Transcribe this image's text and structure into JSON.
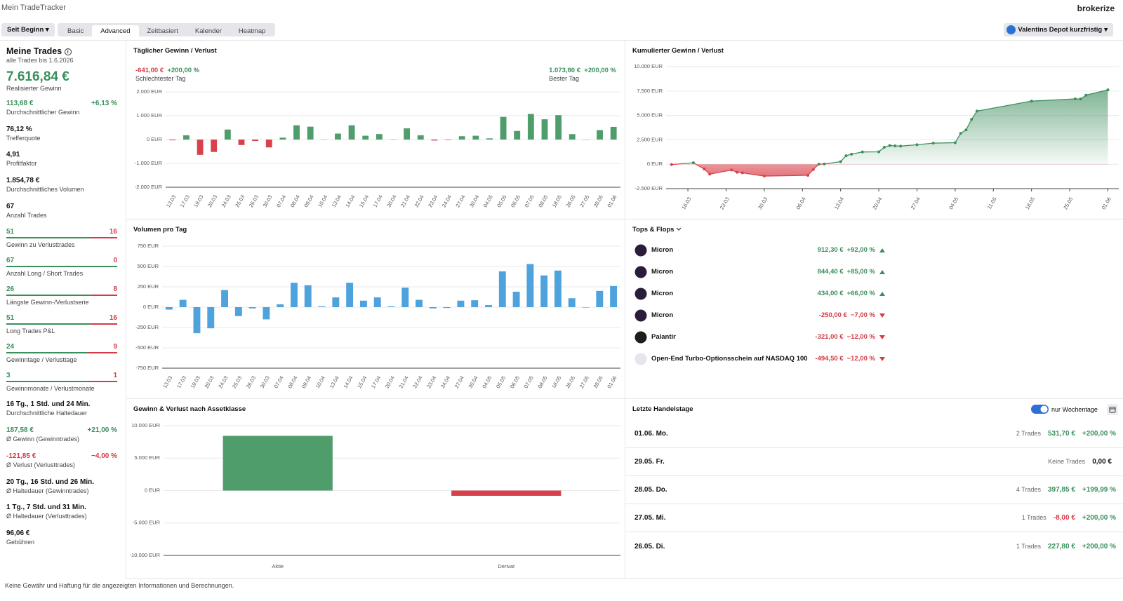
{
  "header": {
    "title": "Mein TradeTracker",
    "logo": "brokerize",
    "range": "Seit Beginn",
    "tabs": [
      "Basic",
      "Advanced",
      "Zeitbasiert",
      "Kalender",
      "Heatmap"
    ],
    "active_tab": 1,
    "depot": "Valentins Depot kurzfristig"
  },
  "sidebar": {
    "title": "Meine Trades",
    "subtitle": "alle Trades bis 1.6.2026",
    "total": "7.616,84 €",
    "total_label": "Realisierter Gewinn",
    "stats": [
      {
        "value": "113,68 €",
        "extra": "+6,13 %",
        "label": "Durchschnittlicher Gewinn",
        "trend": "up"
      },
      {
        "value": "76,12 %",
        "label": "Trefferquote"
      },
      {
        "value": "4,91",
        "label": "Profitfaktor"
      },
      {
        "value": "1.854,78 €",
        "label": "Durchschnittliches Volumen"
      },
      {
        "value": "67",
        "label": "Anzahl Trades"
      },
      {
        "win": 51,
        "loss": 16,
        "label": "Gewinn zu Verlusttrades"
      },
      {
        "win": 67,
        "loss": 0,
        "label": "Anzahl Long / Short Trades"
      },
      {
        "win": 26,
        "loss": 8,
        "label": "Längste Gewinn-/Verlustserie"
      },
      {
        "win": 51,
        "loss": 16,
        "label": "Long Trades P&L"
      },
      {
        "win": 24,
        "loss": 9,
        "label": "Gewinntage / Verlusttage"
      },
      {
        "win": 3,
        "loss": 1,
        "label": "Gewinnmonate / Verlustmonate"
      },
      {
        "value": "16 Tg., 1 Std. und 24 Min.",
        "label": "Durchschnittliche Haltedauer"
      },
      {
        "value": "187,58 €",
        "extra": "+21,00 %",
        "label": "Ø Gewinn (Gewinntrades)",
        "trend": "up"
      },
      {
        "value": "-121,85 €",
        "extra": "−4,00 %",
        "label": "Ø Verlust (Verlusttrades)",
        "trend": "down"
      },
      {
        "value": "20 Tg., 16 Std. und 26 Min.",
        "label": "Ø Haltedauer (Gewinntrades)"
      },
      {
        "value": "1 Tg., 7 Std. und 31 Min.",
        "label": "Ø Haltedauer (Verlusttrades)"
      },
      {
        "value": "96,06 €",
        "label": "Gebühren"
      }
    ]
  },
  "daily": {
    "type": "bar",
    "title": "Täglicher Gewinn / Verlust",
    "worst": {
      "value": "-641,00 €",
      "pct": "+200,00 %",
      "label": "Schlechtester Tag"
    },
    "best": {
      "value": "1.073,80 €",
      "pct": "+200,00 %",
      "label": "Bester Tag"
    },
    "categories": [
      "13.03",
      "17.03",
      "19.03",
      "20.03",
      "24.03",
      "25.03",
      "26.03",
      "30.03",
      "07.04",
      "08.04",
      "09.04",
      "10.04",
      "13.04",
      "14.04",
      "15.04",
      "17.04",
      "20.04",
      "21.04",
      "22.04",
      "23.04",
      "24.04",
      "27.04",
      "30.04",
      "04.05",
      "05.05",
      "06.05",
      "07.05",
      "08.05",
      "18.05",
      "26.05",
      "27.05",
      "28.05",
      "01.06"
    ],
    "values": [
      -30,
      180,
      -641,
      -520,
      420,
      -230,
      -60,
      -330,
      80,
      600,
      540,
      10,
      250,
      600,
      160,
      230,
      10,
      470,
      180,
      -40,
      -20,
      140,
      160,
      50,
      950,
      360,
      1073.8,
      850,
      1024.69,
      227.8,
      -8,
      397.85,
      531.7
    ],
    "ylim": [
      -2000,
      2000
    ],
    "yticks": [
      {
        "value": 2000,
        "label": "2.000 EUR"
      },
      {
        "value": 1000,
        "label": "1.000 EUR"
      },
      {
        "value": 0,
        "label": "0 EUR"
      },
      {
        "value": -1000,
        "label": "-1.000 EUR"
      },
      {
        "value": -2000,
        "label": "-2.000 EUR"
      }
    ],
    "positive_color": "#4f9d6b",
    "negative_color": "#d8414b",
    "grid": true
  },
  "volume": {
    "type": "bar",
    "title": "Volumen pro Tag",
    "categories": [
      "13.03",
      "17.03",
      "19.03",
      "20.03",
      "24.03",
      "25.03",
      "26.03",
      "30.03",
      "07.04",
      "08.04",
      "09.04",
      "10.04",
      "13.04",
      "14.04",
      "15.04",
      "17.04",
      "20.04",
      "21.04",
      "22.04",
      "23.04",
      "24.04",
      "27.04",
      "30.04",
      "04.05",
      "05.05",
      "06.05",
      "07.05",
      "08.05",
      "18.05",
      "26.05",
      "27.05",
      "28.05",
      "01.06"
    ],
    "values": [
      -30,
      90,
      -320,
      -260,
      210,
      -110,
      -15,
      -150,
      35,
      300,
      270,
      10,
      120,
      300,
      80,
      120,
      10,
      240,
      90,
      -15,
      -10,
      80,
      85,
      25,
      440,
      190,
      530,
      390,
      450,
      110,
      -5,
      200,
      260
    ],
    "ylim": [
      -750,
      750
    ],
    "yticks": [
      {
        "value": 750,
        "label": "750 EUR"
      },
      {
        "value": 500,
        "label": "500 EUR"
      },
      {
        "value": 250,
        "label": "250 EUR"
      },
      {
        "value": 0,
        "label": "0 EUR"
      },
      {
        "value": -250,
        "label": "-250 EUR"
      },
      {
        "value": -500,
        "label": "-500 EUR"
      },
      {
        "value": -750,
        "label": "-750 EUR"
      }
    ],
    "color": "#4ea3dc",
    "grid": true
  },
  "cumulative": {
    "type": "area",
    "title": "Kumulierter Gewinn / Verlust",
    "x": [
      "13.03",
      "17.03",
      "19.03",
      "20.03",
      "24.03",
      "25.03",
      "26.03",
      "30.03",
      "07.04",
      "08.04",
      "09.04",
      "10.04",
      "13.04",
      "14.04",
      "15.04",
      "17.04",
      "20.04",
      "21.04",
      "22.04",
      "23.04",
      "24.04",
      "27.04",
      "30.04",
      "04.05",
      "05.05",
      "06.05",
      "07.05",
      "08.05",
      "18.05",
      "26.05",
      "27.05",
      "28.05",
      "01.06"
    ],
    "values": [
      -30,
      150,
      -491,
      -1011,
      -591,
      -821,
      -881,
      -1211,
      -1131,
      -531,
      9,
      19,
      269,
      869,
      1029,
      1259,
      1269,
      1739,
      1919,
      1879,
      1859,
      1999,
      2159,
      2209,
      3159,
      3519,
      4592.8,
      5442.8,
      6467.49,
      6695.29,
      6687.29,
      7085.14,
      7616.84
    ],
    "xlim": [
      "12.03",
      "03.06"
    ],
    "xticks": [
      "16.03",
      "23.03",
      "30.03",
      "06.04",
      "13.04",
      "20.04",
      "27.04",
      "04.05",
      "11.05",
      "18.05",
      "25.05",
      "01.06"
    ],
    "ylim": [
      -2500,
      10000
    ],
    "yticks": [
      {
        "value": 10000,
        "label": "10.000 EUR"
      },
      {
        "value": 7500,
        "label": "7.500 EUR"
      },
      {
        "value": 5000,
        "label": "5.000 EUR"
      },
      {
        "value": 2500,
        "label": "2.500 EUR"
      },
      {
        "value": 0,
        "label": "0 EUR"
      },
      {
        "value": -2500,
        "label": "-2.500 EUR"
      }
    ],
    "positive_color": "#3f8f5e",
    "negative_color": "#d8414b",
    "grid": true
  },
  "assets": {
    "type": "bar",
    "title": "Gewinn & Verlust nach Assetklasse",
    "categories": [
      "Aktie",
      "Derivat"
    ],
    "values": [
      8430,
      -813
    ],
    "ylim": [
      -10000,
      10000
    ],
    "yticks": [
      {
        "value": 10000,
        "label": "10.000 EUR"
      },
      {
        "value": 5000,
        "label": "5.000 EUR"
      },
      {
        "value": 0,
        "label": "0 EUR"
      },
      {
        "value": -5000,
        "label": "-5.000 EUR"
      },
      {
        "value": -10000,
        "label": "-10.000 EUR"
      }
    ],
    "positive_color": "#4f9d6b",
    "negative_color": "#d8414b",
    "grid": true
  },
  "tops": {
    "title": "Tops & Flops",
    "rows": [
      {
        "name": "Micron",
        "value": "912,30 €",
        "pct": "+92,00 %",
        "icon_color": "#2b1d3a"
      },
      {
        "name": "Micron",
        "value": "844,40 €",
        "pct": "+85,00 %",
        "icon_color": "#2b1d3a"
      },
      {
        "name": "Micron",
        "value": "434,00 €",
        "pct": "+66,00 %",
        "icon_color": "#2b1d3a"
      },
      {
        "name": "Micron",
        "value": "-250,00 €",
        "pct": "−7,00 %",
        "icon_color": "#2b1d3a"
      },
      {
        "name": "Palantir",
        "value": "-321,00 €",
        "pct": "−12,00 %",
        "icon_color": "#1d1d1d"
      },
      {
        "name": "Open-End Turbo-Optionsschein auf NASDAQ 100",
        "value": "-494,50 €",
        "pct": "−12,00 %",
        "icon_color": "#e6e6ee"
      }
    ]
  },
  "days": {
    "title": "Letzte Handelstage",
    "toggle_label": "nur Wochentage",
    "toggle_on": true,
    "rows": [
      {
        "day": "01.06. Mo.",
        "trades": "2 Trades",
        "value": "531,70 €",
        "pct": "+200,00 %"
      },
      {
        "day": "29.05. Fr.",
        "trades": "Keine Trades",
        "value": "0,00 €"
      },
      {
        "day": "28.05. Do.",
        "trades": "4 Trades",
        "value": "397,85 €",
        "pct": "+199,99 %"
      },
      {
        "day": "27.05. Mi.",
        "trades": "1 Trades",
        "value": "-8,00 €",
        "pct": "+200,00 %"
      },
      {
        "day": "26.05. Di.",
        "trades": "1 Trades",
        "value": "227,80 €",
        "pct": "+200,00 %"
      }
    ]
  },
  "footer": "Keine Gewähr und Haftung für die angezeigten Informationen und Berechnungen."
}
